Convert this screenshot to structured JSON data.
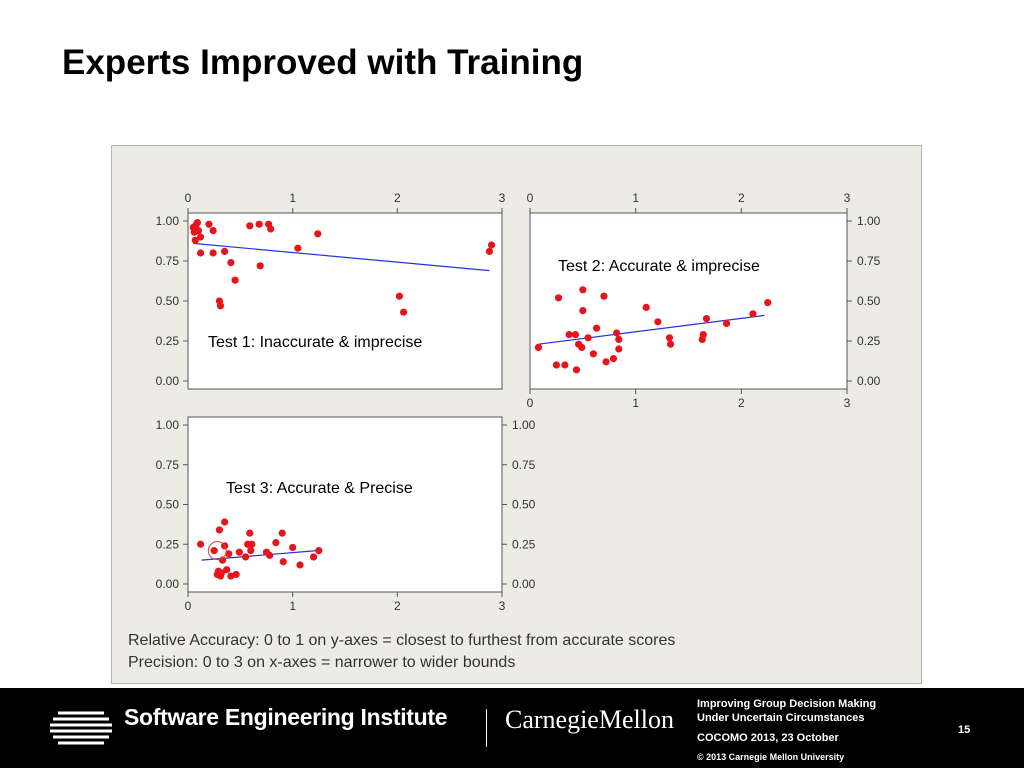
{
  "slide": {
    "title": "Experts Improved with Training",
    "notes": [
      "Relative Accuracy: 0 to 1 on y-axes = closest to furthest from accurate scores",
      "Precision: 0 to 3 on x-axes = narrower to wider bounds"
    ]
  },
  "footer": {
    "sei": "Software Engineering Institute",
    "cmu": "CarnegieMellon",
    "lines": [
      "Improving Group Decision Making",
      "Under Uncertain Circumstances"
    ],
    "date": "COCOMO 2013, 23 October",
    "copyright": "© 2013 Carnegie Mellon University",
    "page": "15"
  },
  "colors": {
    "points": "#e8141c",
    "fit": "#2233dd",
    "panel": "#ecebe4"
  },
  "chart_data": [
    {
      "type": "scatter",
      "annotation": "Test 1: Inaccurate & imprecise",
      "xlim": [
        0,
        3
      ],
      "ylim": [
        0,
        1
      ],
      "xticks": [
        "0",
        "1",
        "2",
        "3"
      ],
      "yticks": [
        "0.00",
        "0.25",
        "0.50",
        "0.75",
        "1.00"
      ],
      "x_axis": "top",
      "y_axis": "left",
      "fit": [
        [
          0.05,
          0.86
        ],
        [
          2.88,
          0.69
        ]
      ],
      "points": [
        [
          0.05,
          0.96
        ],
        [
          0.06,
          0.93
        ],
        [
          0.08,
          0.98
        ],
        [
          0.1,
          0.94
        ],
        [
          0.07,
          0.88
        ],
        [
          0.12,
          0.9
        ],
        [
          0.09,
          0.99
        ],
        [
          0.12,
          0.8
        ],
        [
          0.2,
          0.98
        ],
        [
          0.24,
          0.94
        ],
        [
          0.24,
          0.8
        ],
        [
          0.35,
          0.81
        ],
        [
          0.3,
          0.5
        ],
        [
          0.31,
          0.47
        ],
        [
          0.41,
          0.74
        ],
        [
          0.45,
          0.63
        ],
        [
          0.59,
          0.97
        ],
        [
          0.68,
          0.98
        ],
        [
          0.69,
          0.72
        ],
        [
          0.77,
          0.98
        ],
        [
          0.79,
          0.95
        ],
        [
          1.05,
          0.83
        ],
        [
          1.24,
          0.92
        ],
        [
          2.02,
          0.53
        ],
        [
          2.06,
          0.43
        ],
        [
          2.88,
          0.81
        ],
        [
          2.9,
          0.85
        ]
      ]
    },
    {
      "type": "scatter",
      "annotation": "Test 2: Accurate & imprecise",
      "xlim": [
        0,
        3
      ],
      "ylim": [
        0,
        1
      ],
      "xticks": [
        "0",
        "1",
        "2",
        "3"
      ],
      "yticks": [
        "0.00",
        "0.25",
        "0.50",
        "0.75",
        "1.00"
      ],
      "x_axis": "both",
      "y_axis": "right",
      "fit": [
        [
          0.08,
          0.23
        ],
        [
          2.22,
          0.41
        ]
      ],
      "points": [
        [
          0.08,
          0.21
        ],
        [
          0.25,
          0.1
        ],
        [
          0.27,
          0.52
        ],
        [
          0.33,
          0.1
        ],
        [
          0.37,
          0.29
        ],
        [
          0.43,
          0.29
        ],
        [
          0.44,
          0.07
        ],
        [
          0.46,
          0.23
        ],
        [
          0.49,
          0.21
        ],
        [
          0.5,
          0.44
        ],
        [
          0.5,
          0.57
        ],
        [
          0.55,
          0.27
        ],
        [
          0.6,
          0.17
        ],
        [
          0.63,
          0.33
        ],
        [
          0.7,
          0.53
        ],
        [
          0.72,
          0.12
        ],
        [
          0.79,
          0.14
        ],
        [
          0.82,
          0.3
        ],
        [
          0.84,
          0.2
        ],
        [
          0.84,
          0.26
        ],
        [
          1.1,
          0.46
        ],
        [
          1.21,
          0.37
        ],
        [
          1.32,
          0.27
        ],
        [
          1.33,
          0.23
        ],
        [
          1.63,
          0.26
        ],
        [
          1.64,
          0.29
        ],
        [
          1.67,
          0.39
        ],
        [
          1.86,
          0.36
        ],
        [
          2.11,
          0.42
        ],
        [
          2.25,
          0.49
        ]
      ]
    },
    {
      "type": "scatter",
      "annotation": "Test 3: Accurate & Precise",
      "xlim": [
        0,
        3
      ],
      "ylim": [
        0,
        1
      ],
      "xticks": [
        "0",
        "1",
        "2",
        "3"
      ],
      "yticks": [
        "0.00",
        "0.25",
        "0.50",
        "0.75",
        "1.00"
      ],
      "x_axis": "bottom",
      "y_axis": "both",
      "fit": [
        [
          0.13,
          0.15
        ],
        [
          1.23,
          0.21
        ]
      ],
      "points": [
        [
          0.12,
          0.25
        ],
        [
          0.25,
          0.21
        ],
        [
          0.28,
          0.06
        ],
        [
          0.29,
          0.08
        ],
        [
          0.3,
          0.34
        ],
        [
          0.31,
          0.05
        ],
        [
          0.32,
          0.07
        ],
        [
          0.33,
          0.15
        ],
        [
          0.35,
          0.24
        ],
        [
          0.35,
          0.39
        ],
        [
          0.37,
          0.09
        ],
        [
          0.39,
          0.19
        ],
        [
          0.41,
          0.05
        ],
        [
          0.46,
          0.06
        ],
        [
          0.49,
          0.2
        ],
        [
          0.55,
          0.17
        ],
        [
          0.57,
          0.25
        ],
        [
          0.59,
          0.32
        ],
        [
          0.6,
          0.21
        ],
        [
          0.61,
          0.25
        ],
        [
          0.75,
          0.2
        ],
        [
          0.78,
          0.18
        ],
        [
          0.84,
          0.26
        ],
        [
          0.9,
          0.32
        ],
        [
          0.91,
          0.14
        ],
        [
          1.0,
          0.23
        ],
        [
          1.07,
          0.12
        ],
        [
          1.2,
          0.17
        ],
        [
          1.25,
          0.21
        ]
      ]
    }
  ]
}
